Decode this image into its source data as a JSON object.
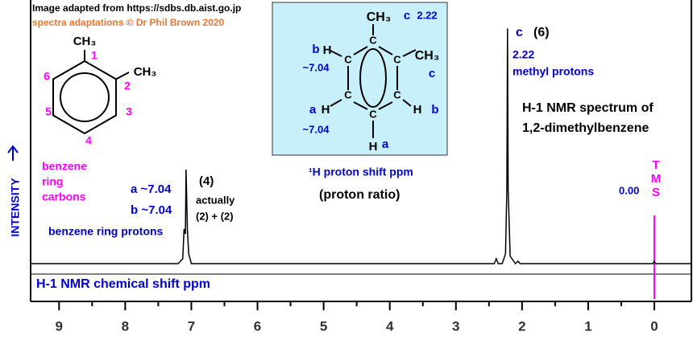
{
  "chart_data": {
    "type": "line",
    "x": [
      9.43,
      7.2,
      7.13,
      7.11,
      7.09,
      7.08,
      7.06,
      7.04,
      7.0,
      2.42,
      2.39,
      2.36,
      2.3,
      2.25,
      2.23,
      2.22,
      2.21,
      2.18,
      2.1,
      2.06,
      2.03,
      0.02,
      0.0,
      -0.02,
      -0.56
    ],
    "series": [
      {
        "color": "#000000",
        "values": [
          0,
          0,
          2,
          14,
          12,
          38,
          14,
          4,
          0,
          0,
          2,
          0,
          0,
          4,
          30,
          95,
          30,
          3,
          0,
          1,
          0,
          0,
          1,
          0,
          0
        ]
      }
    ],
    "xlim": [
      9.43,
      -0.56
    ],
    "ylim": [
      0,
      100
    ],
    "xticks": [
      9,
      8,
      7,
      6,
      5,
      4,
      3,
      2,
      1,
      0
    ],
    "xticks_minor": [
      8.5,
      7.5,
      6.5,
      5.5,
      4.5,
      3.5,
      2.5,
      1.5,
      0.5
    ],
    "xlabel": "H-1 NMR chemical shift  ppm",
    "ylabel": "INTENSITY",
    "annotations": [
      "Image adapted from https://sdbs.db.aist.go.jp",
      "spectra adaptations © Dr Phil Brown 2020",
      "benzene",
      "ring",
      "carbons",
      "a  ~7.04",
      "b  ~7.04",
      "benzene ring protons",
      "(4)",
      "actually",
      "(2) + (2)",
      "¹H  proton shift  ppm",
      "(proton ratio)",
      "c",
      "(6)",
      "2.22",
      "methyl protons",
      "H-1 NMR spectrum of",
      "1,2-dimethylbenzene",
      "0.00",
      "TMS"
    ]
  },
  "molecule_labels": {
    "left": [
      "CH₃",
      "CH₃",
      "1",
      "2",
      "3",
      "4",
      "5",
      "6"
    ],
    "inset": [
      "CH₃",
      "c",
      "2.22",
      "b",
      "H",
      "~7.04",
      "a",
      "H",
      "~7.04",
      "H",
      "a",
      "H",
      "b",
      "CH₃",
      "c",
      "C",
      "C",
      "C",
      "C",
      "C",
      "C"
    ]
  }
}
